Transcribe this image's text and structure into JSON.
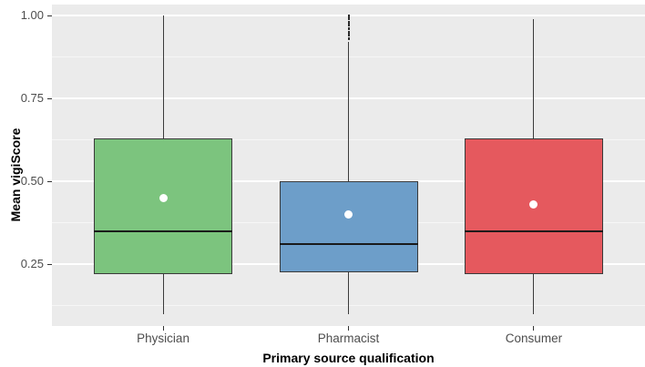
{
  "chart_data": {
    "type": "boxplot",
    "title": "",
    "xlabel": "Primary source qualification",
    "ylabel": "Mean vigiScore",
    "categories": [
      "Physician",
      "Pharmacist",
      "Consumer"
    ],
    "y_axis": {
      "ticks": [
        {
          "value": 0.25,
          "label": "0.25"
        },
        {
          "value": 0.5,
          "label": "0.50"
        },
        {
          "value": 0.75,
          "label": "0.75"
        },
        {
          "value": 1.0,
          "label": "1.00"
        }
      ],
      "minor_gridlines": [
        0.125,
        0.375,
        0.625,
        0.875
      ],
      "range": [
        0.063,
        1.033
      ]
    },
    "series": [
      {
        "category": "Physician",
        "fill": "#7CC47E",
        "whisker_low": 0.1,
        "q1": 0.22,
        "median": 0.35,
        "q3": 0.63,
        "whisker_high": 1.0,
        "mean": 0.45,
        "outliers": []
      },
      {
        "category": "Pharmacist",
        "fill": "#6D9EC9",
        "whisker_low": 0.1,
        "q1": 0.225,
        "median": 0.31,
        "q3": 0.5,
        "whisker_high": 0.92,
        "mean": 0.4,
        "outliers": [
          0.93,
          0.94,
          0.95,
          0.96,
          0.97,
          0.98,
          0.99,
          1.0
        ]
      },
      {
        "category": "Consumer",
        "fill": "#E5595E",
        "whisker_low": 0.1,
        "q1": 0.22,
        "median": 0.35,
        "q3": 0.63,
        "whisker_high": 0.99,
        "mean": 0.43,
        "outliers": []
      }
    ],
    "legend": "none",
    "grid": true,
    "style": {
      "panel_background": "#EBEBEB",
      "major_gridline": "#FFFFFF",
      "minor_gridline": "rgba(255,255,255,0.55)",
      "box_border": "#3A3A3A",
      "median_color": "#1A1A1A",
      "whisker_color": "#3A3A3A",
      "mean_dot_color": "#FFFFFF",
      "outlier_color": "#2B2B2B",
      "tick_label_color": "#4D4D4D",
      "axis_title_color": "#000000"
    }
  }
}
